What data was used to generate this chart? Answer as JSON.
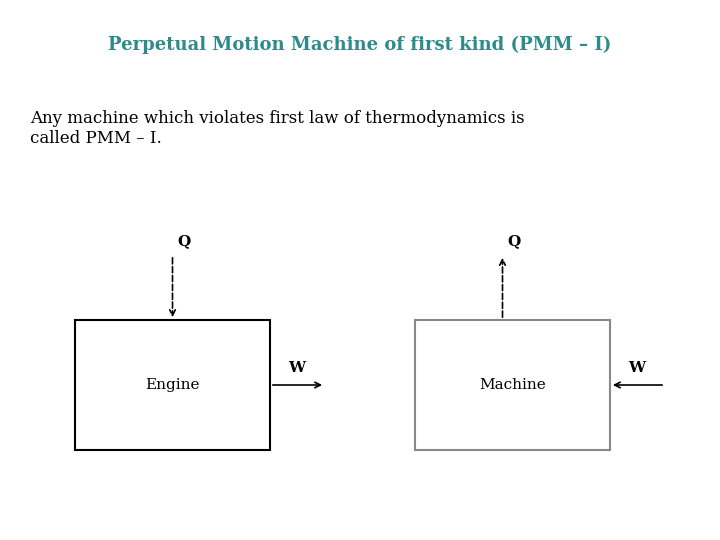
{
  "title": "Perpetual Motion Machine of first kind (PMM – I)",
  "title_color": "#2e8b8b",
  "title_fontsize": 13,
  "body_text": "Any machine which violates first law of thermodynamics is\ncalled PMM – I.",
  "body_fontsize": 12,
  "background_color": "#ffffff",
  "engine_label": "Engine",
  "machine_label": "Machine",
  "label_fontsize": 11,
  "arrow_label_fontsize": 11
}
